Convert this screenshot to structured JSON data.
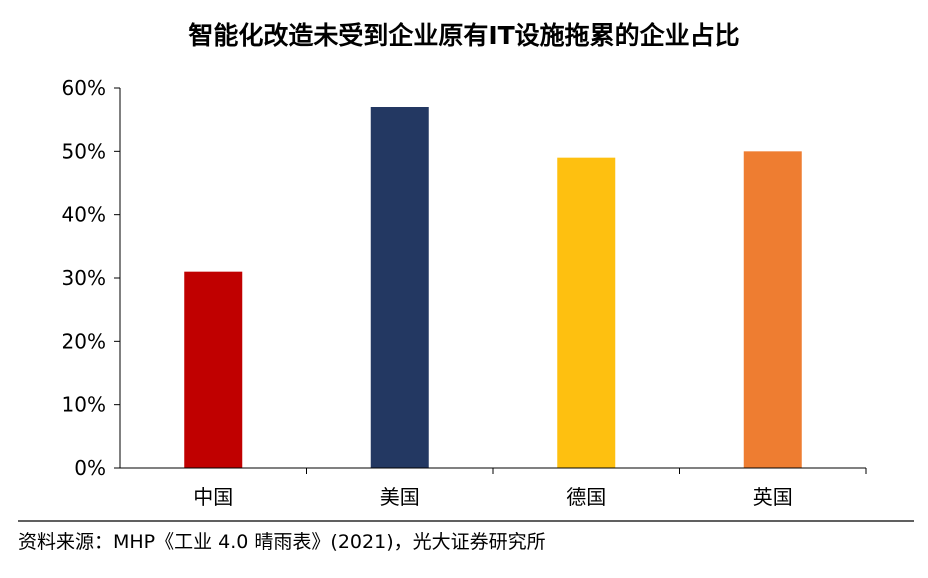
{
  "chart_data": {
    "type": "bar",
    "title": "智能化改造未受到企业原有IT设施拖累的企业占比",
    "categories": [
      "中国",
      "美国",
      "德国",
      "英国"
    ],
    "values": [
      31,
      57,
      49,
      50
    ],
    "value_unit": "%",
    "colors": [
      "#c00000",
      "#233862",
      "#fec010",
      "#ee7d31"
    ],
    "ylim": [
      0,
      60
    ],
    "yticks": [
      "0%",
      "10%",
      "20%",
      "30%",
      "40%",
      "50%",
      "60%"
    ],
    "xlabel": "",
    "ylabel": "",
    "grid": false,
    "legend": "none"
  },
  "source": "资料来源：MHP《工业 4.0 晴雨表》(2021)，光大证券研究所"
}
